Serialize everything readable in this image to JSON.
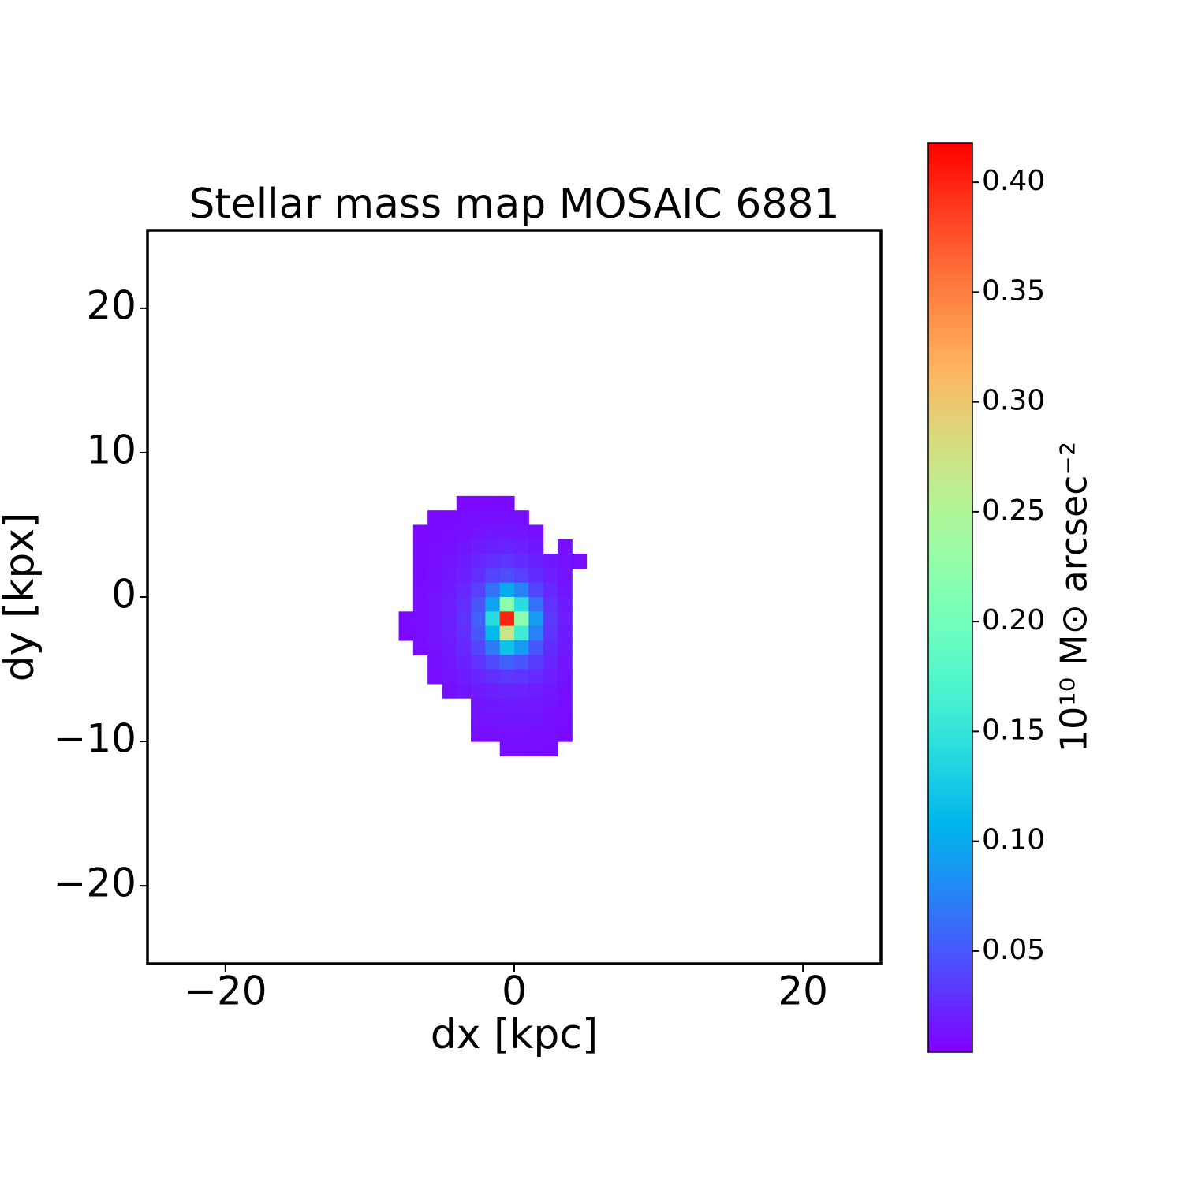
{
  "chart_data": {
    "type": "heatmap",
    "title": "Stellar mass map MOSAIC 6881",
    "x_label": "dx [kpc]",
    "y_label": "dy [kpx]",
    "colorbar_label": "10¹⁰ M⊙ arcsec⁻²",
    "colormap": "rainbow",
    "xlim": [
      -25.4,
      25.4
    ],
    "ylim": [
      -25.4,
      25.4
    ],
    "xticks": [
      {
        "value": -20,
        "label": "−20"
      },
      0,
      20
    ],
    "yticks": [
      {
        "value": -20,
        "label": "−20"
      },
      {
        "value": -10,
        "label": "−10"
      },
      0,
      10,
      20
    ],
    "clim": [
      0.004,
      0.418
    ],
    "cticks": [
      0.05,
      {
        "value": 0.1,
        "label": "0.10"
      },
      0.15,
      {
        "value": 0.2,
        "label": "0.20"
      },
      0.25,
      {
        "value": 0.3,
        "label": "0.30"
      },
      0.35,
      {
        "value": 0.4,
        "label": "0.40"
      }
    ],
    "x": [
      -7.5,
      -6.5,
      -5.5,
      -4.5,
      -3.5,
      -2.5,
      -1.5,
      -0.5,
      0.5,
      1.5,
      2.5,
      3.5,
      4.5
    ],
    "y": [
      6.5,
      5.5,
      4.5,
      3.5,
      2.5,
      1.5,
      0.5,
      -0.5,
      -1.5,
      -2.5,
      -3.5,
      -4.5,
      -5.5,
      -6.5,
      -7.5,
      -8.5,
      -9.5,
      -10.5
    ],
    "values": [
      [
        null,
        null,
        null,
        null,
        0.008,
        0.008,
        0.009,
        0.009,
        null,
        null,
        null,
        null,
        null
      ],
      [
        null,
        null,
        0.008,
        0.009,
        0.01,
        0.011,
        0.012,
        0.012,
        0.011,
        null,
        null,
        null,
        null
      ],
      [
        null,
        0.008,
        0.009,
        0.01,
        0.012,
        0.014,
        0.016,
        0.016,
        0.015,
        0.012,
        null,
        null,
        null
      ],
      [
        null,
        0.008,
        0.01,
        0.012,
        0.015,
        0.018,
        0.021,
        0.022,
        0.02,
        0.016,
        null,
        0.011,
        null
      ],
      [
        null,
        0.009,
        0.011,
        0.014,
        0.018,
        0.023,
        0.029,
        0.031,
        0.027,
        0.021,
        0.016,
        0.013,
        0.01
      ],
      [
        null,
        0.009,
        0.012,
        0.016,
        0.021,
        0.029,
        0.04,
        0.045,
        0.038,
        0.027,
        0.019,
        0.014,
        null
      ],
      [
        null,
        0.01,
        0.013,
        0.018,
        0.025,
        0.038,
        0.065,
        0.1,
        0.075,
        0.04,
        0.024,
        0.016,
        null
      ],
      [
        null,
        0.01,
        0.014,
        0.019,
        0.028,
        0.048,
        0.095,
        0.22,
        0.14,
        0.065,
        0.03,
        0.018,
        null
      ],
      [
        0.009,
        0.011,
        0.014,
        0.02,
        0.03,
        0.055,
        0.14,
        0.4,
        0.22,
        0.09,
        0.034,
        0.019,
        null
      ],
      [
        0.009,
        0.01,
        0.014,
        0.019,
        0.028,
        0.05,
        0.11,
        0.27,
        0.16,
        0.075,
        0.031,
        0.018,
        null
      ],
      [
        null,
        0.01,
        0.013,
        0.018,
        0.025,
        0.04,
        0.07,
        0.12,
        0.09,
        0.05,
        0.027,
        0.017,
        null
      ],
      [
        null,
        null,
        0.012,
        0.016,
        0.021,
        0.03,
        0.042,
        0.055,
        0.048,
        0.035,
        0.023,
        0.015,
        null
      ],
      [
        null,
        null,
        0.011,
        0.014,
        0.018,
        0.023,
        0.029,
        0.033,
        0.031,
        0.026,
        0.019,
        0.014,
        null
      ],
      [
        null,
        null,
        null,
        0.012,
        0.015,
        0.018,
        0.021,
        0.023,
        0.022,
        0.019,
        0.016,
        0.012,
        null
      ],
      [
        null,
        null,
        null,
        null,
        null,
        0.015,
        0.016,
        0.017,
        0.017,
        0.016,
        0.014,
        0.011,
        null
      ],
      [
        null,
        null,
        null,
        null,
        null,
        0.013,
        0.014,
        0.015,
        0.015,
        0.014,
        0.012,
        0.01,
        null
      ],
      [
        null,
        null,
        null,
        null,
        null,
        0.011,
        0.012,
        0.013,
        0.013,
        0.012,
        0.011,
        0.009,
        null
      ],
      [
        null,
        null,
        null,
        null,
        null,
        null,
        null,
        0.011,
        0.011,
        0.01,
        0.009,
        null,
        null
      ]
    ]
  }
}
